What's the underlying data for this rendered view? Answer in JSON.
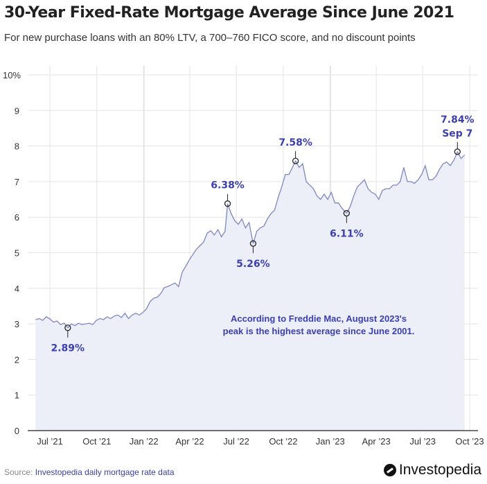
{
  "colors": {
    "line": "#7e86bf",
    "fill": "#eceef8",
    "annotation": "#3b3fb0",
    "grid": "#e3e3e8"
  },
  "chart_data": {
    "type": "area",
    "title": "30-Year Fixed-Rate Mortgage Average Since June 2021",
    "subtitle": "For new purchase loans with an 80% LTV, a 700–760 FICO score, and no discount points",
    "xlabel": "",
    "ylabel": "",
    "ylim": [
      0,
      10
    ],
    "yticks": [
      "0",
      "1",
      "2",
      "3",
      "4",
      "5",
      "6",
      "7",
      "8",
      "9",
      "10%"
    ],
    "xticks": [
      {
        "date": "2021-07-01",
        "label": "Jul ’21"
      },
      {
        "date": "2021-10-01",
        "label": "Oct ’21"
      },
      {
        "date": "2022-01-01",
        "label": "Jan ’22"
      },
      {
        "date": "2022-04-01",
        "label": "Apr ’22"
      },
      {
        "date": "2022-07-01",
        "label": "Jul ’22"
      },
      {
        "date": "2022-10-01",
        "label": "Oct ’22"
      },
      {
        "date": "2023-01-01",
        "label": "Jan ’23"
      },
      {
        "date": "2023-04-01",
        "label": "Apr ’23"
      },
      {
        "date": "2023-07-01",
        "label": "Jul ’23"
      },
      {
        "date": "2023-10-01",
        "label": "Oct ’23"
      }
    ],
    "grid": true,
    "series": [
      {
        "points": [
          [
            "2021-06-03",
            3.12
          ],
          [
            "2021-06-10",
            3.15
          ],
          [
            "2021-06-17",
            3.1
          ],
          [
            "2021-06-24",
            3.2
          ],
          [
            "2021-07-01",
            3.14
          ],
          [
            "2021-07-08",
            3.05
          ],
          [
            "2021-07-15",
            3.08
          ],
          [
            "2021-07-22",
            2.98
          ],
          [
            "2021-07-29",
            3.02
          ],
          [
            "2021-08-05",
            2.89
          ],
          [
            "2021-08-12",
            3.0
          ],
          [
            "2021-08-19",
            2.95
          ],
          [
            "2021-08-26",
            3.02
          ],
          [
            "2021-09-02",
            2.98
          ],
          [
            "2021-09-09",
            3.0
          ],
          [
            "2021-09-16",
            3.02
          ],
          [
            "2021-09-23",
            2.98
          ],
          [
            "2021-09-30",
            3.1
          ],
          [
            "2021-10-07",
            3.15
          ],
          [
            "2021-10-14",
            3.12
          ],
          [
            "2021-10-21",
            3.2
          ],
          [
            "2021-10-28",
            3.15
          ],
          [
            "2021-11-04",
            3.22
          ],
          [
            "2021-11-11",
            3.25
          ],
          [
            "2021-11-18",
            3.18
          ],
          [
            "2021-11-25",
            3.3
          ],
          [
            "2021-12-02",
            3.15
          ],
          [
            "2021-12-09",
            3.25
          ],
          [
            "2021-12-16",
            3.3
          ],
          [
            "2021-12-23",
            3.25
          ],
          [
            "2021-12-30",
            3.32
          ],
          [
            "2022-01-06",
            3.42
          ],
          [
            "2022-01-13",
            3.62
          ],
          [
            "2022-01-20",
            3.72
          ],
          [
            "2022-01-27",
            3.75
          ],
          [
            "2022-02-03",
            3.85
          ],
          [
            "2022-02-10",
            4.02
          ],
          [
            "2022-02-17",
            4.05
          ],
          [
            "2022-02-24",
            4.1
          ],
          [
            "2022-03-03",
            4.15
          ],
          [
            "2022-03-10",
            4.05
          ],
          [
            "2022-03-17",
            4.45
          ],
          [
            "2022-03-24",
            4.62
          ],
          [
            "2022-03-31",
            4.8
          ],
          [
            "2022-04-07",
            4.95
          ],
          [
            "2022-04-14",
            5.1
          ],
          [
            "2022-04-21",
            5.2
          ],
          [
            "2022-04-28",
            5.3
          ],
          [
            "2022-05-05",
            5.55
          ],
          [
            "2022-05-12",
            5.62
          ],
          [
            "2022-05-19",
            5.5
          ],
          [
            "2022-05-26",
            5.65
          ],
          [
            "2022-06-02",
            5.45
          ],
          [
            "2022-06-09",
            5.6
          ],
          [
            "2022-06-14",
            6.38
          ],
          [
            "2022-06-21",
            6.1
          ],
          [
            "2022-06-28",
            5.9
          ],
          [
            "2022-07-05",
            5.8
          ],
          [
            "2022-07-12",
            5.95
          ],
          [
            "2022-07-19",
            5.7
          ],
          [
            "2022-07-26",
            5.85
          ],
          [
            "2022-08-03",
            5.26
          ],
          [
            "2022-08-10",
            5.6
          ],
          [
            "2022-08-17",
            5.7
          ],
          [
            "2022-08-24",
            5.75
          ],
          [
            "2022-08-31",
            5.95
          ],
          [
            "2022-09-07",
            6.1
          ],
          [
            "2022-09-14",
            6.2
          ],
          [
            "2022-09-21",
            6.55
          ],
          [
            "2022-09-28",
            6.85
          ],
          [
            "2022-10-05",
            7.2
          ],
          [
            "2022-10-12",
            7.2
          ],
          [
            "2022-10-19",
            7.4
          ],
          [
            "2022-10-25",
            7.58
          ],
          [
            "2022-11-01",
            7.4
          ],
          [
            "2022-11-08",
            7.5
          ],
          [
            "2022-11-15",
            7.0
          ],
          [
            "2022-11-22",
            6.9
          ],
          [
            "2022-11-29",
            6.8
          ],
          [
            "2022-12-06",
            6.6
          ],
          [
            "2022-12-13",
            6.5
          ],
          [
            "2022-12-20",
            6.65
          ],
          [
            "2022-12-27",
            6.5
          ],
          [
            "2023-01-03",
            6.7
          ],
          [
            "2023-01-10",
            6.4
          ],
          [
            "2023-01-17",
            6.4
          ],
          [
            "2023-01-24",
            6.25
          ],
          [
            "2023-02-02",
            6.11
          ],
          [
            "2023-02-09",
            6.3
          ],
          [
            "2023-02-16",
            6.6
          ],
          [
            "2023-02-23",
            6.85
          ],
          [
            "2023-03-02",
            6.95
          ],
          [
            "2023-03-09",
            7.05
          ],
          [
            "2023-03-16",
            6.8
          ],
          [
            "2023-03-23",
            6.7
          ],
          [
            "2023-03-30",
            6.65
          ],
          [
            "2023-04-06",
            6.5
          ],
          [
            "2023-04-13",
            6.75
          ],
          [
            "2023-04-20",
            6.8
          ],
          [
            "2023-04-27",
            6.8
          ],
          [
            "2023-05-04",
            6.9
          ],
          [
            "2023-05-11",
            6.9
          ],
          [
            "2023-05-18",
            7.0
          ],
          [
            "2023-05-25",
            7.4
          ],
          [
            "2023-06-01",
            7.0
          ],
          [
            "2023-06-08",
            7.0
          ],
          [
            "2023-06-15",
            6.95
          ],
          [
            "2023-06-22",
            7.05
          ],
          [
            "2023-06-29",
            7.2
          ],
          [
            "2023-07-06",
            7.45
          ],
          [
            "2023-07-13",
            7.05
          ],
          [
            "2023-07-20",
            7.05
          ],
          [
            "2023-07-27",
            7.15
          ],
          [
            "2023-08-03",
            7.35
          ],
          [
            "2023-08-10",
            7.5
          ],
          [
            "2023-08-17",
            7.55
          ],
          [
            "2023-08-24",
            7.45
          ],
          [
            "2023-08-31",
            7.6
          ],
          [
            "2023-09-07",
            7.84
          ],
          [
            "2023-09-14",
            7.65
          ],
          [
            "2023-09-21",
            7.75
          ]
        ]
      }
    ],
    "annotations": [
      {
        "date": "2021-08-05",
        "value": 2.89,
        "label": "2.89%",
        "pos": "below"
      },
      {
        "date": "2022-06-14",
        "value": 6.38,
        "label": "6.38%",
        "pos": "above"
      },
      {
        "date": "2022-08-03",
        "value": 5.26,
        "label": "5.26%",
        "pos": "below"
      },
      {
        "date": "2022-10-25",
        "value": 7.58,
        "label": "7.58%",
        "pos": "above"
      },
      {
        "date": "2023-02-02",
        "value": 6.11,
        "label": "6.11%",
        "pos": "below"
      },
      {
        "date": "2023-09-07",
        "value": 7.84,
        "label": "7.84%",
        "label2": "Sep 7",
        "pos": "above"
      }
    ],
    "note": "According to Freddie Mac, August 2023's peak is the highest average since June 2001."
  },
  "footer": {
    "source_prefix": "Source: ",
    "source_link": "Investopedia daily mortgage rate data",
    "logo": "Investopedia"
  }
}
